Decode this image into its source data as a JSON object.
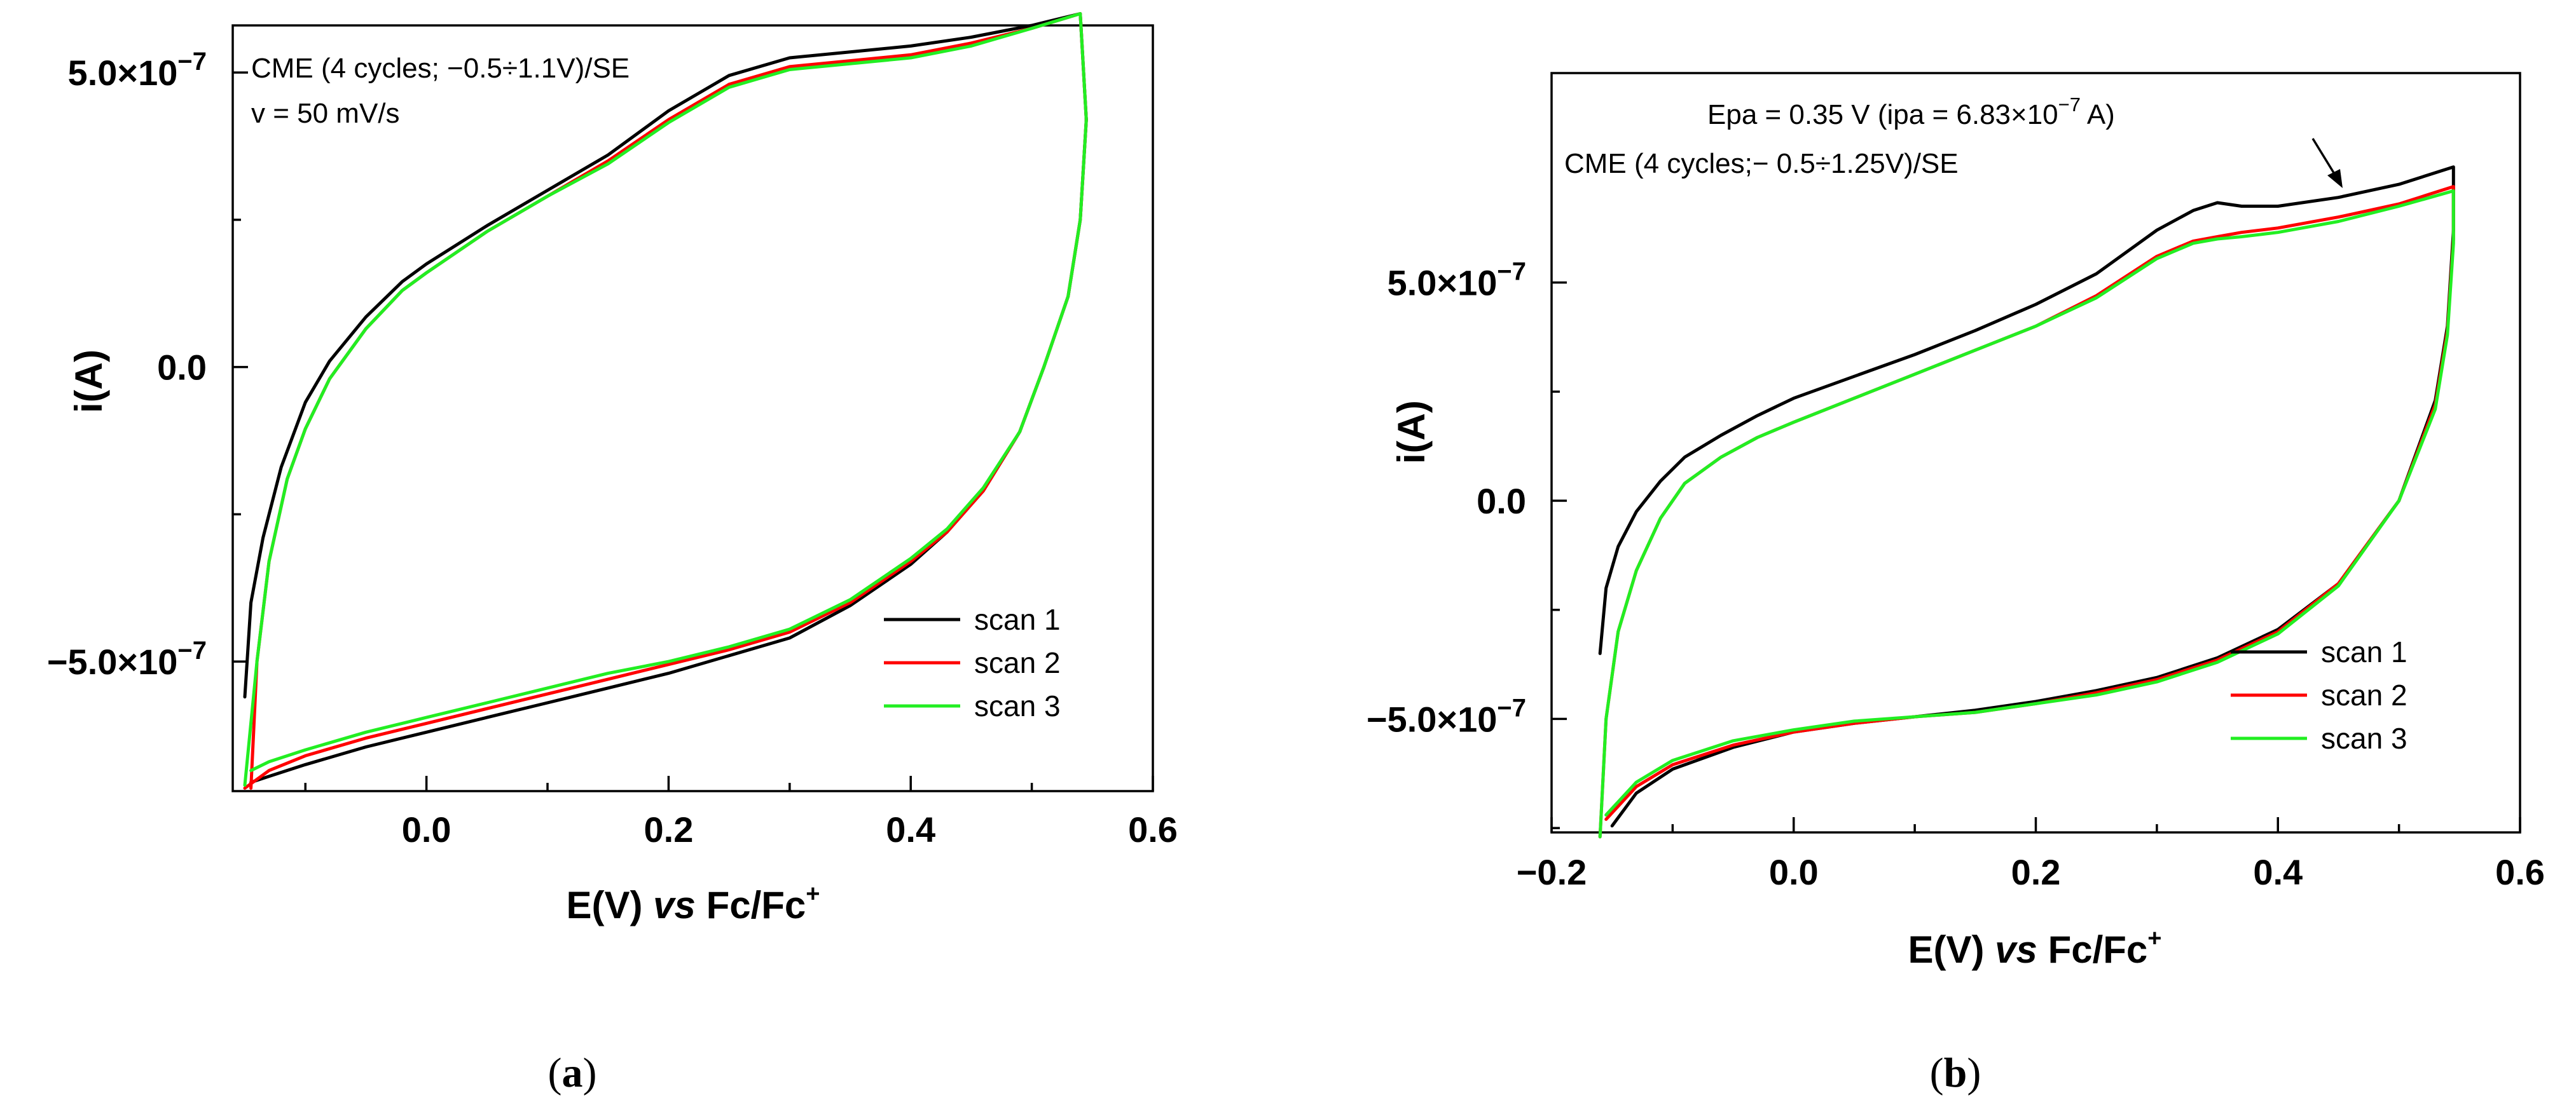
{
  "chart_data": [
    {
      "panel": "a",
      "panel_label_paren_open": "(",
      "panel_label_letter": "a",
      "panel_label_paren_close": ")",
      "type": "line",
      "xlabel_main": "E(V) ",
      "xlabel_italic": "vs",
      "xlabel_tail": " Fc/Fc",
      "xlabel_sup": "+",
      "ylabel": "i(A)",
      "xlim": [
        -0.16,
        0.6
      ],
      "ylim": [
        -7.2e-07,
        5.8e-07
      ],
      "grid": false,
      "x_ticks": [
        {
          "value": 0.0,
          "label": "0.0"
        },
        {
          "value": 0.2,
          "label": "0.2"
        },
        {
          "value": 0.4,
          "label": "0.4"
        },
        {
          "value": 0.6,
          "label": "0.6"
        }
      ],
      "y_ticks": [
        {
          "value": 5e-07,
          "mant": "5.0×10",
          "exp": "−7"
        },
        {
          "value": 0,
          "mant": "0.0",
          "exp": ""
        },
        {
          "value": -5e-07,
          "mant": "−5.0×10",
          "exp": "−7"
        }
      ],
      "annotations": [
        "CME (4 cycles; −0.5÷1.1V)/SE",
        "v = 50 mV/s"
      ],
      "legend_position": "bottom-right",
      "series": [
        {
          "name": "scan 1",
          "color": "#000000",
          "x": [
            -0.15,
            -0.145,
            -0.135,
            -0.12,
            -0.1,
            -0.08,
            -0.05,
            -0.02,
            0.0,
            0.05,
            0.1,
            0.15,
            0.2,
            0.25,
            0.3,
            0.35,
            0.4,
            0.45,
            0.5,
            0.54,
            0.545,
            0.54,
            0.53,
            0.51,
            0.49,
            0.46,
            0.43,
            0.4,
            0.35,
            0.3,
            0.25,
            0.2,
            0.15,
            0.1,
            0.05,
            0.0,
            -0.05,
            -0.1,
            -0.13,
            -0.145
          ],
          "y": [
            -5.6e-07,
            -4e-07,
            -2.9e-07,
            -1.7e-07,
            -6e-08,
            1e-08,
            8.5e-08,
            1.45e-07,
            1.75e-07,
            2.4e-07,
            3e-07,
            3.6e-07,
            4.35e-07,
            4.95e-07,
            5.25e-07,
            5.35e-07,
            5.45e-07,
            5.6e-07,
            5.8e-07,
            6e-07,
            4.2e-07,
            2.5e-07,
            1.2e-07,
            0.0,
            -1.1e-07,
            -2.1e-07,
            -2.8e-07,
            -3.35e-07,
            -4.05e-07,
            -4.6e-07,
            -4.9e-07,
            -5.2e-07,
            -5.45e-07,
            -5.7e-07,
            -5.95e-07,
            -6.2e-07,
            -6.45e-07,
            -6.75e-07,
            -6.95e-07,
            -7.05e-07
          ]
        },
        {
          "name": "scan 2",
          "color": "#ff0000",
          "x": [
            -0.145,
            -0.14,
            -0.13,
            -0.115,
            -0.1,
            -0.08,
            -0.05,
            -0.02,
            0.0,
            0.05,
            0.1,
            0.15,
            0.2,
            0.25,
            0.3,
            0.35,
            0.4,
            0.45,
            0.5,
            0.54,
            0.545,
            0.54,
            0.53,
            0.51,
            0.49,
            0.46,
            0.43,
            0.4,
            0.35,
            0.3,
            0.25,
            0.2,
            0.15,
            0.1,
            0.05,
            0.0,
            -0.05,
            -0.1,
            -0.13,
            -0.15
          ],
          "y": [
            -7.15e-07,
            -5e-07,
            -3.3e-07,
            -1.9e-07,
            -1.05e-07,
            -2e-08,
            6.5e-08,
            1.3e-07,
            1.6e-07,
            2.3e-07,
            2.9e-07,
            3.5e-07,
            4.2e-07,
            4.8e-07,
            5.1e-07,
            5.2e-07,
            5.3e-07,
            5.5e-07,
            5.75e-07,
            6e-07,
            4.2e-07,
            2.5e-07,
            1.2e-07,
            0.0,
            -1.1e-07,
            -2.1e-07,
            -2.8e-07,
            -3.3e-07,
            -4e-07,
            -4.5e-07,
            -4.8e-07,
            -5.05e-07,
            -5.3e-07,
            -5.55e-07,
            -5.8e-07,
            -6.05e-07,
            -6.3e-07,
            -6.6e-07,
            -6.85e-07,
            -7.15e-07
          ]
        },
        {
          "name": "scan 3",
          "color": "#22ee22",
          "x": [
            -0.15,
            -0.14,
            -0.13,
            -0.115,
            -0.1,
            -0.08,
            -0.05,
            -0.02,
            0.0,
            0.05,
            0.1,
            0.15,
            0.2,
            0.25,
            0.3,
            0.35,
            0.4,
            0.45,
            0.5,
            0.54,
            0.545,
            0.54,
            0.53,
            0.51,
            0.49,
            0.46,
            0.43,
            0.4,
            0.35,
            0.3,
            0.25,
            0.2,
            0.15,
            0.1,
            0.05,
            0.0,
            -0.05,
            -0.1,
            -0.13,
            -0.145
          ],
          "y": [
            -7.1e-07,
            -5e-07,
            -3.3e-07,
            -1.9e-07,
            -1.05e-07,
            -2e-08,
            6.5e-08,
            1.3e-07,
            1.6e-07,
            2.3e-07,
            2.9e-07,
            3.45e-07,
            4.15e-07,
            4.75e-07,
            5.05e-07,
            5.15e-07,
            5.25e-07,
            5.45e-07,
            5.75e-07,
            6e-07,
            4.2e-07,
            2.5e-07,
            1.2e-07,
            0.0,
            -1.1e-07,
            -2.05e-07,
            -2.75e-07,
            -3.25e-07,
            -3.95e-07,
            -4.45e-07,
            -4.75e-07,
            -5e-07,
            -5.2e-07,
            -5.45e-07,
            -5.7e-07,
            -5.95e-07,
            -6.2e-07,
            -6.5e-07,
            -6.7e-07,
            -6.85e-07
          ]
        }
      ]
    },
    {
      "panel": "b",
      "panel_label_paren_open": "(",
      "panel_label_letter": "b",
      "panel_label_paren_close": ")",
      "type": "line",
      "xlabel_main": "E(V) ",
      "xlabel_italic": "vs",
      "xlabel_tail": " Fc/Fc",
      "xlabel_sup": "+",
      "ylabel": "i(A)",
      "xlim": [
        -0.2,
        0.6
      ],
      "ylim": [
        -7.6e-07,
        9.8e-07
      ],
      "grid": false,
      "x_ticks": [
        {
          "value": -0.2,
          "label": "−0.2"
        },
        {
          "value": 0.0,
          "label": "0.0"
        },
        {
          "value": 0.2,
          "label": "0.2"
        },
        {
          "value": 0.4,
          "label": "0.4"
        },
        {
          "value": 0.6,
          "label": "0.6"
        }
      ],
      "y_ticks": [
        {
          "value": 5e-07,
          "mant": "5.0×10",
          "exp": "−7"
        },
        {
          "value": 0,
          "mant": "0.0",
          "exp": ""
        },
        {
          "value": -5e-07,
          "mant": "−5.0×10",
          "exp": "−7"
        }
      ],
      "annotations": [
        "CME (4 cycles;− 0.5÷1.25V)/SE"
      ],
      "peak_annotation": {
        "text": "Epa = 0.35 V (ipa = 6.83×10",
        "exp": "−7",
        "tail": " A)",
        "x": 0.35,
        "y": 6.83e-07
      },
      "legend_position": "bottom-right",
      "series": [
        {
          "name": "scan 1",
          "color": "#000000",
          "x": [
            -0.16,
            -0.155,
            -0.145,
            -0.13,
            -0.11,
            -0.09,
            -0.06,
            -0.03,
            0.0,
            0.05,
            0.1,
            0.15,
            0.2,
            0.25,
            0.3,
            0.33,
            0.35,
            0.37,
            0.4,
            0.45,
            0.5,
            0.545,
            0.545,
            0.54,
            0.53,
            0.5,
            0.45,
            0.4,
            0.35,
            0.3,
            0.25,
            0.2,
            0.15,
            0.1,
            0.05,
            0.0,
            -0.05,
            -0.1,
            -0.13,
            -0.15
          ],
          "y": [
            -3.5e-07,
            -2e-07,
            -1.05e-07,
            -2.5e-08,
            4.5e-08,
            1e-07,
            1.5e-07,
            1.95e-07,
            2.35e-07,
            2.85e-07,
            3.35e-07,
            3.9e-07,
            4.5e-07,
            5.2e-07,
            6.2e-07,
            6.65e-07,
            6.83e-07,
            6.75e-07,
            6.75e-07,
            6.95e-07,
            7.25e-07,
            7.65e-07,
            6.2e-07,
            4e-07,
            2.3e-07,
            0.0,
            -1.9e-07,
            -2.95e-07,
            -3.6e-07,
            -4.05e-07,
            -4.35e-07,
            -4.6e-07,
            -4.8e-07,
            -4.95e-07,
            -5.1e-07,
            -5.3e-07,
            -5.65e-07,
            -6.15e-07,
            -6.7e-07,
            -7.45e-07
          ]
        },
        {
          "name": "scan 2",
          "color": "#ff0000",
          "x": [
            -0.16,
            -0.155,
            -0.145,
            -0.13,
            -0.11,
            -0.09,
            -0.06,
            -0.03,
            0.0,
            0.05,
            0.1,
            0.15,
            0.2,
            0.25,
            0.3,
            0.33,
            0.35,
            0.37,
            0.4,
            0.45,
            0.5,
            0.545,
            0.545,
            0.54,
            0.53,
            0.5,
            0.45,
            0.4,
            0.35,
            0.3,
            0.25,
            0.2,
            0.15,
            0.1,
            0.05,
            0.0,
            -0.05,
            -0.1,
            -0.13,
            -0.155
          ],
          "y": [
            -7.7e-07,
            -5e-07,
            -3e-07,
            -1.6e-07,
            -4e-08,
            4e-08,
            1e-07,
            1.45e-07,
            1.8e-07,
            2.35e-07,
            2.9e-07,
            3.45e-07,
            4e-07,
            4.7e-07,
            5.6e-07,
            5.95e-07,
            6.05e-07,
            6.15e-07,
            6.25e-07,
            6.5e-07,
            6.8e-07,
            7.2e-07,
            6e-07,
            3.9e-07,
            2.2e-07,
            0.0,
            -1.9e-07,
            -3e-07,
            -3.65e-07,
            -4.1e-07,
            -4.4e-07,
            -4.65e-07,
            -4.85e-07,
            -4.95e-07,
            -5.1e-07,
            -5.3e-07,
            -5.6e-07,
            -6.05e-07,
            -6.55e-07,
            -7.3e-07
          ]
        },
        {
          "name": "scan 3",
          "color": "#22ee22",
          "x": [
            -0.16,
            -0.155,
            -0.145,
            -0.13,
            -0.11,
            -0.09,
            -0.06,
            -0.03,
            0.0,
            0.05,
            0.1,
            0.15,
            0.2,
            0.25,
            0.3,
            0.33,
            0.35,
            0.37,
            0.4,
            0.45,
            0.5,
            0.545,
            0.545,
            0.54,
            0.53,
            0.5,
            0.45,
            0.4,
            0.35,
            0.3,
            0.25,
            0.2,
            0.15,
            0.1,
            0.05,
            0.0,
            -0.05,
            -0.1,
            -0.13,
            -0.155
          ],
          "y": [
            -7.7e-07,
            -5e-07,
            -3e-07,
            -1.6e-07,
            -4e-08,
            4e-08,
            1e-07,
            1.45e-07,
            1.8e-07,
            2.35e-07,
            2.9e-07,
            3.45e-07,
            4e-07,
            4.65e-07,
            5.55e-07,
            5.9e-07,
            6e-07,
            6.05e-07,
            6.15e-07,
            6.4e-07,
            6.75e-07,
            7.1e-07,
            5.9e-07,
            3.8e-07,
            2.1e-07,
            0.0,
            -1.95e-07,
            -3.05e-07,
            -3.7e-07,
            -4.15e-07,
            -4.45e-07,
            -4.65e-07,
            -4.85e-07,
            -4.95e-07,
            -5.05e-07,
            -5.25e-07,
            -5.5e-07,
            -5.95e-07,
            -6.45e-07,
            -7.2e-07
          ]
        }
      ]
    }
  ]
}
